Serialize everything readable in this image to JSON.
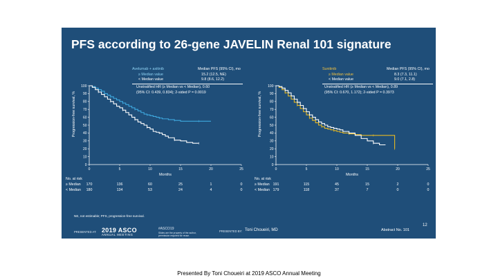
{
  "slide": {
    "title": "PFS according to 26-gene JAVELIN Renal 101 signature",
    "footnote": "NE, not estimable; PFS, progression-free survival.",
    "page_number": "12",
    "footer": {
      "presented_at": "PRESENTED AT:",
      "asco_logo": "2019 ASCO",
      "asco_sub": "ANNUAL MEETING",
      "hashtag": "#ASCO19",
      "hashtag_sub1": "Slides are the property of the author,",
      "hashtag_sub2": "permission required for reuse.",
      "presented_by": "PRESENTED BY:",
      "presenter": "Toni Choueiri, MD",
      "abstract": "Abstract No. 101"
    }
  },
  "caption": "Presented By Toni Choueiri at 2019 ASCO Annual Meeting",
  "colors": {
    "slide_bg": "#1f4e79",
    "high": "#3fa9e0",
    "low": "#ffffff",
    "high_sunitinib": "#e8b923"
  },
  "chart_data": [
    {
      "type": "line",
      "legend": {
        "header": "Avelumab + axitinib",
        "value_header": "Median PFS (95% CI), mo",
        "rows": [
          {
            "label": "≥ Median value",
            "value": "15.2 (12.5, NE)"
          },
          {
            "label": "< Median value",
            "value": "9.8 (8.6, 12.2)"
          }
        ],
        "stats_line1": "Unstratified HR (≥ Median vs < Median), 0.60",
        "stats_line2": "(95% CI: 0.439, 0.834); 2-sided P = 0.0019"
      },
      "ylabel": "Progression-free survival, %",
      "xlabel": "Months",
      "xlim": [
        0,
        25
      ],
      "ylim": [
        0,
        100
      ],
      "xticks": [
        "0",
        "5",
        "10",
        "15",
        "20",
        "25"
      ],
      "yticks": [
        "0",
        "10",
        "20",
        "30",
        "40",
        "50",
        "60",
        "70",
        "80",
        "90",
        "100"
      ],
      "series": [
        {
          "name": "≥ Median value",
          "color": "#3fa9e0",
          "x": [
            0,
            0.5,
            1,
            1.5,
            2,
            2.5,
            3,
            3.5,
            4,
            4.5,
            5,
            5.5,
            6,
            6.5,
            7,
            7.5,
            8,
            8.5,
            9,
            9.5,
            10,
            10.5,
            11,
            11.5,
            12,
            12.5,
            13,
            14,
            15,
            16,
            17,
            18,
            19,
            20
          ],
          "y": [
            100,
            99,
            97,
            95,
            93,
            90,
            88,
            86,
            84,
            82,
            80,
            78,
            76,
            74,
            72,
            70,
            68,
            66,
            64,
            63,
            62,
            61,
            60,
            59,
            58,
            58,
            57,
            56,
            55,
            55,
            55,
            55,
            55,
            55
          ]
        },
        {
          "name": "< Median value",
          "color": "#ffffff",
          "x": [
            0,
            0.5,
            1,
            1.5,
            2,
            2.5,
            3,
            3.5,
            4,
            4.5,
            5,
            5.5,
            6,
            6.5,
            7,
            7.5,
            8,
            8.5,
            9,
            9.5,
            10,
            10.5,
            11,
            11.5,
            12,
            12.5,
            13,
            14,
            15,
            16,
            17,
            18
          ],
          "y": [
            100,
            98,
            95,
            92,
            89,
            86,
            83,
            80,
            77,
            74,
            72,
            69,
            66,
            63,
            60,
            57,
            54,
            52,
            50,
            47,
            45,
            42,
            41,
            40,
            38,
            36,
            34,
            31,
            30,
            28,
            27,
            27
          ]
        }
      ],
      "risk_table": {
        "header": "No. at risk",
        "rows": [
          {
            "label": "≥ Median",
            "values": [
              "170",
              "136",
              "60",
              "25",
              "1",
              "0"
            ]
          },
          {
            "label": "< Median",
            "values": [
              "180",
              "134",
              "53",
              "24",
              "4",
              "0"
            ]
          }
        ]
      }
    },
    {
      "type": "line",
      "legend": {
        "header": "Sunitinib",
        "value_header": "Median PFS (95% CI), mo",
        "rows": [
          {
            "label": "≥ Median value",
            "value": "8.3 (7.3, 11.1)"
          },
          {
            "label": "< Median value",
            "value": "9.0 (7.1, 2.8)"
          }
        ],
        "stats_line1": "Unstratified HR (≥ Median vs < Median), 0.89",
        "stats_line2": "(95% CI: 0.670, 1.172); 2-sided P = 0.3973"
      },
      "ylabel": "Progression-free survival, %",
      "xlabel": "Months",
      "xlim": [
        0,
        25
      ],
      "ylim": [
        0,
        100
      ],
      "xticks": [
        "0",
        "5",
        "10",
        "15",
        "20",
        "25"
      ],
      "yticks": [
        "0",
        "10",
        "20",
        "30",
        "40",
        "50",
        "60",
        "70",
        "80",
        "90",
        "100"
      ],
      "series": [
        {
          "name": "≥ Median value",
          "color": "#e8b923",
          "x": [
            0,
            0.5,
            1,
            1.5,
            2,
            2.5,
            3,
            3.5,
            4,
            4.5,
            5,
            5.5,
            6,
            6.5,
            7,
            7.5,
            8,
            8.5,
            9,
            9.5,
            10,
            10.5,
            11,
            12,
            13,
            14,
            15,
            16,
            17,
            18,
            19,
            19.5
          ],
          "y": [
            100,
            98,
            95,
            91,
            87,
            83,
            79,
            75,
            71,
            67,
            63,
            59,
            56,
            53,
            50,
            48,
            46,
            45,
            44,
            43,
            42,
            41,
            40,
            39,
            38,
            37,
            37,
            37,
            37,
            37,
            37,
            20
          ]
        },
        {
          "name": "< Median value",
          "color": "#ffffff",
          "x": [
            0,
            0.5,
            1,
            1.5,
            2,
            2.5,
            3,
            3.5,
            4,
            4.5,
            5,
            5.5,
            6,
            6.5,
            7,
            7.5,
            8,
            8.5,
            9,
            9.5,
            10,
            10.5,
            11,
            12,
            13,
            14,
            15,
            16,
            17,
            18
          ],
          "y": [
            100,
            99,
            97,
            94,
            91,
            87,
            83,
            79,
            75,
            71,
            67,
            63,
            60,
            57,
            54,
            52,
            50,
            48,
            47,
            46,
            45,
            44,
            42,
            40,
            37,
            33,
            30,
            27,
            25,
            25
          ]
        }
      ],
      "risk_table": {
        "header": "No. at risk",
        "rows": [
          {
            "label": "≥ Median",
            "values": [
              "191",
              "115",
              "45",
              "15",
              "2",
              "0"
            ]
          },
          {
            "label": "< Median",
            "values": [
              "179",
              "118",
              "37",
              "7",
              "0",
              "0"
            ]
          }
        ]
      }
    }
  ]
}
